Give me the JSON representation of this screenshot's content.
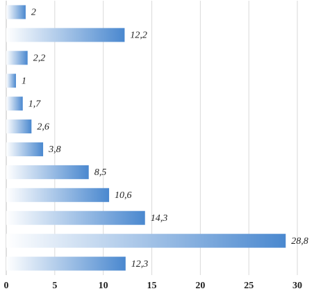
{
  "chart_data": {
    "type": "bar",
    "orientation": "horizontal",
    "categories": [
      null,
      null,
      null,
      null,
      null,
      null,
      null,
      null,
      null,
      null,
      null,
      null
    ],
    "values": [
      2,
      12.2,
      2.2,
      1,
      1.7,
      2.6,
      3.8,
      8.5,
      10.6,
      14.3,
      28.8,
      12.3
    ],
    "value_labels": [
      "2",
      "12,2",
      "2,2",
      "1",
      "1,7",
      "2,6",
      "3,8",
      "8,5",
      "10,6",
      "14,3",
      "28,8",
      "12,3"
    ],
    "color": "#4a88cf",
    "xlim": [
      0,
      31
    ],
    "xticks": [
      0,
      5,
      10,
      15,
      20,
      25,
      30
    ],
    "grid": true
  }
}
